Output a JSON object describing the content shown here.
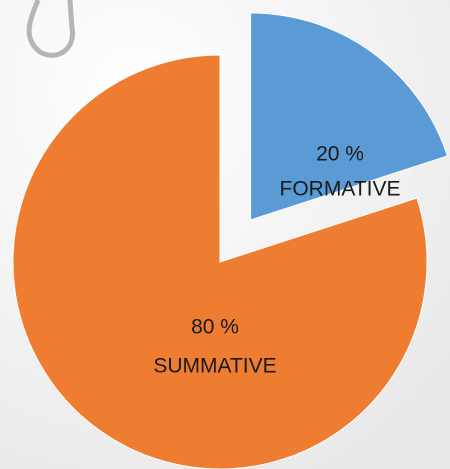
{
  "chart_data": {
    "type": "pie",
    "categories": [
      "FORMATIVE",
      "SUMMATIVE"
    ],
    "values": [
      20,
      80
    ],
    "value_labels": [
      "20 %",
      "80 %"
    ],
    "colors": [
      "#5b9bd5",
      "#ee7d31"
    ]
  }
}
